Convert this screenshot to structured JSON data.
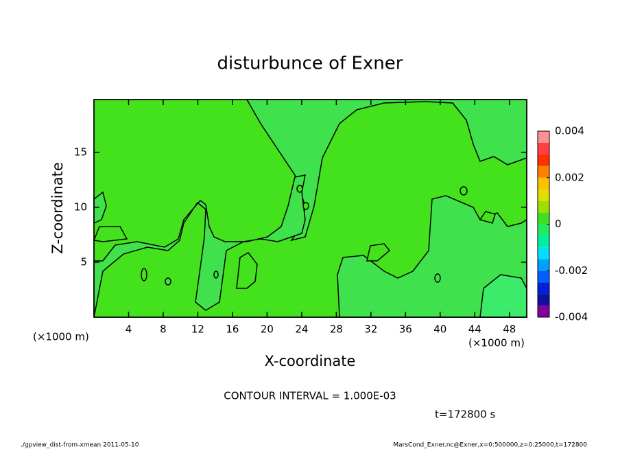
{
  "chart_data": {
    "type": "contour",
    "title": "disturbunce of Exner",
    "x_label": "X-coordinate",
    "y_label": "Z-coordinate",
    "x_unit": "(×1000 m)",
    "y_unit": "(×1000 m)",
    "xlim": [
      0,
      50
    ],
    "xticks": [
      4,
      8,
      12,
      16,
      20,
      24,
      28,
      32,
      36,
      40,
      44,
      48
    ],
    "ylim": [
      0,
      19.8
    ],
    "yticks": [
      5,
      10,
      15
    ],
    "contour_interval": "CONTOUR INTERVAL = 1.000E-03",
    "time_label": "t=172800 s",
    "footer_left": "./gpview_dist-from-xmean  2011-05-10",
    "footer_right": "MarsCond_Exner.nc@Exner,x=0:500000,z=0:25000,t=172800",
    "colorbar": {
      "levels": [
        -0.004,
        -0.0035,
        -0.003,
        -0.0025,
        -0.002,
        -0.0015,
        -0.001,
        -0.0005,
        0,
        0.0005,
        0.001,
        0.0015,
        0.002,
        0.0025,
        0.003,
        0.0035,
        0.004
      ],
      "colors": [
        "#8000a0",
        "#1010a0",
        "#0020e0",
        "#0060ff",
        "#00a0ff",
        "#00e0ff",
        "#00f0a0",
        "#20ee60",
        "#40e020",
        "#a0e000",
        "#e0e000",
        "#ffc000",
        "#ff8000",
        "#ff3000",
        "#ff4040",
        "#ff9090"
      ],
      "ticks": [
        -0.004,
        -0.002,
        0,
        0.002,
        0.004
      ]
    }
  }
}
